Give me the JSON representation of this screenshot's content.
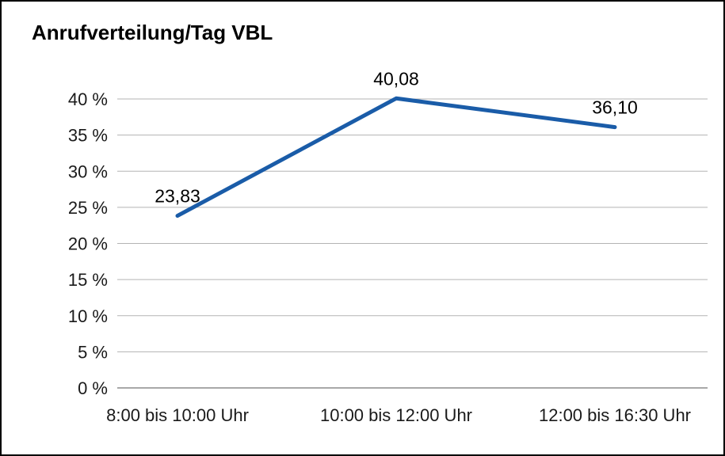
{
  "frame": {
    "border_color": "#000000",
    "background": "#ffffff"
  },
  "chart_data": {
    "type": "line",
    "title": "Anrufverteilung/Tag VBL",
    "categories": [
      "8:00 bis 10:00 Uhr",
      "10:00 bis 12:00 Uhr",
      "12:00 bis 16:30 Uhr"
    ],
    "values": [
      23.83,
      40.08,
      36.1
    ],
    "value_labels": [
      "23,83",
      "40,08",
      "36,10"
    ],
    "xlabel": "",
    "ylabel": "",
    "ylim": [
      0,
      40
    ],
    "ytick_step": 5,
    "ytick_labels": [
      "0 %",
      "5 %",
      "10 %",
      "15 %",
      "20 %",
      "25 %",
      "30 %",
      "35 %",
      "40 %"
    ],
    "grid": "horizontal",
    "legend": "none",
    "line_color": "#1a5ca8",
    "grid_color": "#b3b3b3",
    "axis_color": "#8c8c8c",
    "text_color": "#1a1a1a",
    "label_color": "#000000"
  }
}
